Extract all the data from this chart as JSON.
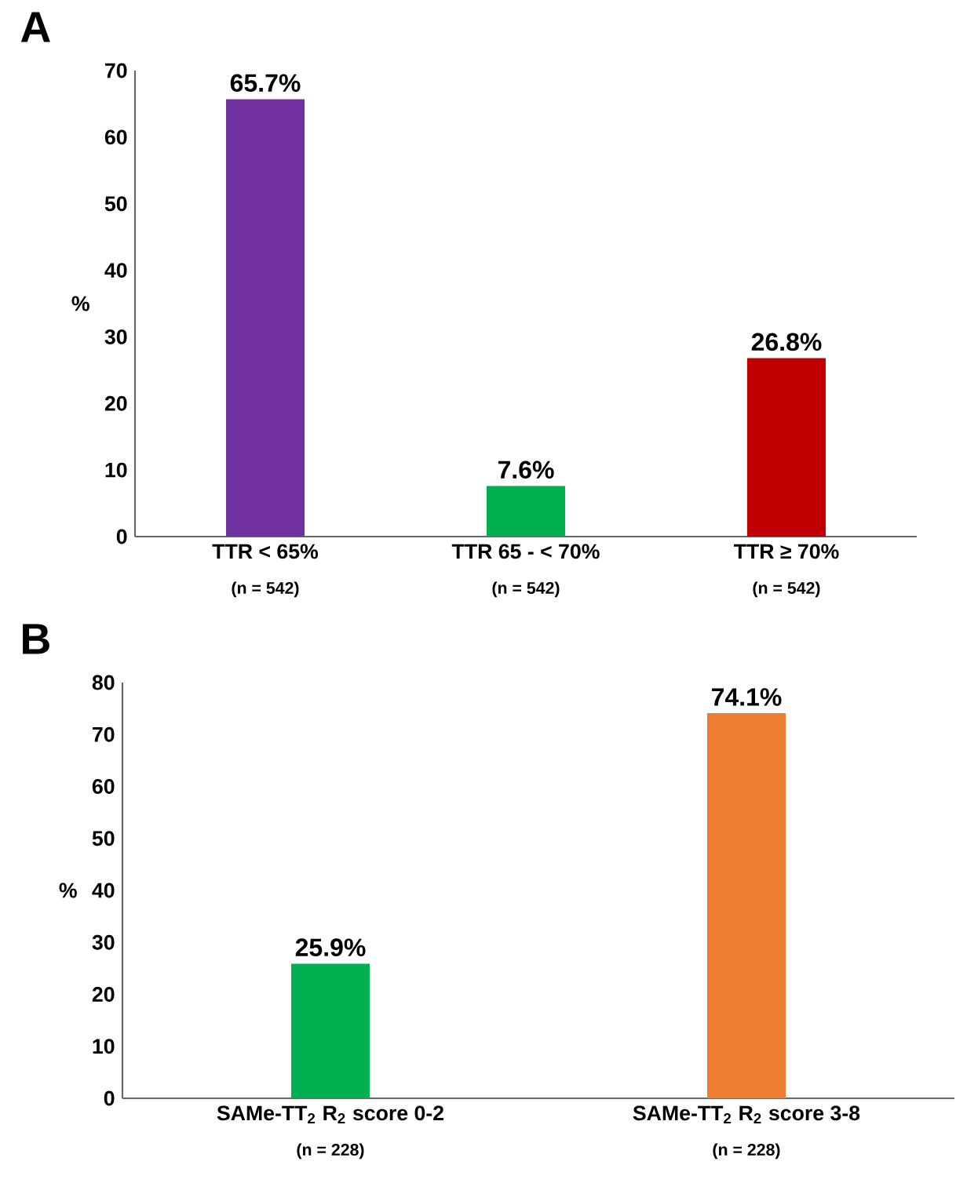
{
  "chart_data": [
    {
      "type": "bar",
      "title": "A",
      "ylabel": "%",
      "categories": [
        "TTR < 65%",
        "TTR 65 - < 70%",
        "TTR ≥ 70%"
      ],
      "values": [
        65.7,
        7.6,
        26.8
      ],
      "value_labels": [
        "65.7%",
        "7.6%",
        "26.8%"
      ],
      "colors": [
        "#7030a0",
        "#00b050",
        "#c00000"
      ],
      "ylim": [
        0,
        70
      ],
      "yticks": [
        0,
        10,
        20,
        30,
        40,
        50,
        60,
        70
      ],
      "annotations": [
        "(n = 542)",
        "(n = 542)",
        "(n = 542)"
      ]
    },
    {
      "type": "bar",
      "title": "B",
      "ylabel": "%",
      "categories": [
        "SAMe-TT$_{2}$ R$_{2}$ score 0-2",
        "SAMe-TT$_{2}$ R$_{2}$ score 3-8"
      ],
      "values": [
        25.9,
        74.1
      ],
      "value_labels": [
        "25.9%",
        "74.1%"
      ],
      "colors": [
        "#00b050",
        "#ed7d31"
      ],
      "ylim": [
        0,
        80
      ],
      "yticks": [
        0,
        10,
        20,
        30,
        40,
        50,
        60,
        70,
        80
      ],
      "annotations": [
        "(n = 228)",
        "(n = 228)"
      ]
    }
  ]
}
